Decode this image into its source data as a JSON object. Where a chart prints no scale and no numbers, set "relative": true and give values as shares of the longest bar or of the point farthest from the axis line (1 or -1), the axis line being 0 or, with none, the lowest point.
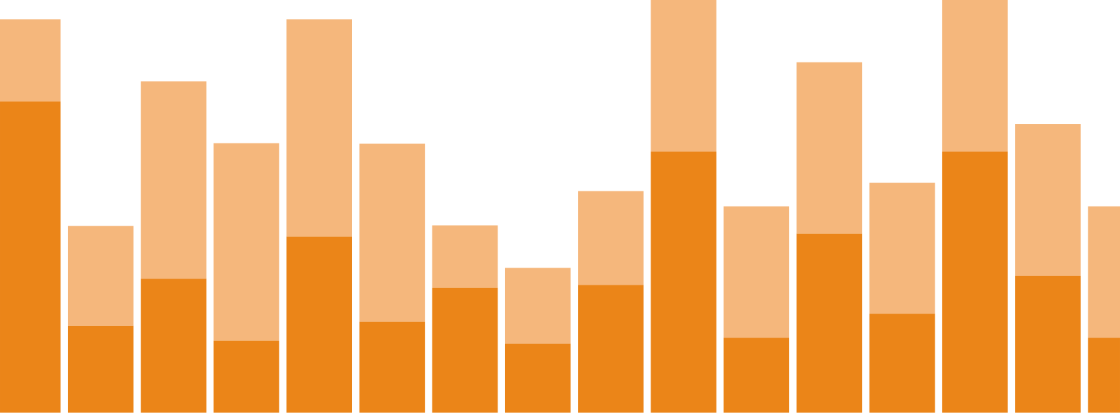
{
  "chart_data": {
    "type": "bar",
    "relative": true,
    "stacked": true,
    "categories": [
      null,
      null,
      null,
      null,
      null,
      null,
      null,
      null,
      null,
      null,
      null,
      null,
      null,
      null,
      null,
      null
    ],
    "series": [
      {
        "color": "#eb8518",
        "values": [
          0.754,
          0.211,
          0.325,
          0.175,
          0.427,
          0.221,
          0.303,
          0.168,
          0.31,
          0.633,
          0.182,
          0.434,
          0.24,
          0.633,
          0.332,
          0.182
        ]
      },
      {
        "color": "#f5b77c",
        "values": [
          0.199,
          0.242,
          0.478,
          0.478,
          0.526,
          0.431,
          0.151,
          0.183,
          0.227,
          0.367,
          0.318,
          0.415,
          0.317,
          0.367,
          0.367,
          0.318
        ]
      }
    ]
  }
}
